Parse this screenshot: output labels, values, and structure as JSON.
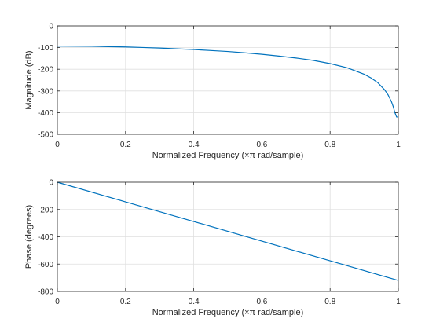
{
  "colors": {
    "background": "#ffffff",
    "axes": "#262626",
    "grid": "#dfdfdf",
    "line": "#0072bd",
    "text": "#262626"
  },
  "chart_data": [
    {
      "type": "line",
      "xlabel": "Normalized Frequency (×π rad/sample)",
      "ylabel": "Magnitude (dB)",
      "xlim": [
        0,
        1
      ],
      "ylim": [
        -500,
        0
      ],
      "x_ticks": [
        0,
        0.2,
        0.4,
        0.6,
        0.8,
        1
      ],
      "x_tick_labels": [
        "0",
        "0.2",
        "0.4",
        "0.6",
        "0.8",
        "1"
      ],
      "y_ticks": [
        0,
        -100,
        -200,
        -300,
        -400,
        -500
      ],
      "y_tick_labels": [
        "0",
        "-100",
        "-200",
        "-300",
        "-400",
        "-500"
      ],
      "grid": true,
      "series": [
        {
          "x": [
            0,
            0.05,
            0.1,
            0.15,
            0.2,
            0.25,
            0.3,
            0.35,
            0.4,
            0.45,
            0.5,
            0.55,
            0.6,
            0.65,
            0.7,
            0.75,
            0.8,
            0.85,
            0.9,
            0.92,
            0.94,
            0.96,
            0.97,
            0.98,
            0.985,
            0.99,
            0.995,
            1.0
          ],
          "y": [
            -93,
            -93.5,
            -94,
            -95.5,
            -97,
            -99.5,
            -102,
            -105.5,
            -109,
            -113.5,
            -118,
            -124,
            -131,
            -139,
            -148,
            -159,
            -174,
            -193,
            -223,
            -240,
            -262,
            -295,
            -318,
            -350,
            -372,
            -400,
            -420,
            -420
          ]
        }
      ]
    },
    {
      "type": "line",
      "xlabel": "Normalized Frequency (×π rad/sample)",
      "ylabel": "Phase (degrees)",
      "xlim": [
        0,
        1
      ],
      "ylim": [
        -800,
        0
      ],
      "x_ticks": [
        0,
        0.2,
        0.4,
        0.6,
        0.8,
        1
      ],
      "x_tick_labels": [
        "0",
        "0.2",
        "0.4",
        "0.6",
        "0.8",
        "1"
      ],
      "y_ticks": [
        0,
        -200,
        -400,
        -600,
        -800
      ],
      "y_tick_labels": [
        "0",
        "-200",
        "-400",
        "-600",
        "-800"
      ],
      "grid": true,
      "series": [
        {
          "x": [
            0,
            0.2,
            0.4,
            0.6,
            0.8,
            1.0
          ],
          "y": [
            0,
            -144,
            -288,
            -432,
            -576,
            -720
          ]
        }
      ]
    }
  ]
}
